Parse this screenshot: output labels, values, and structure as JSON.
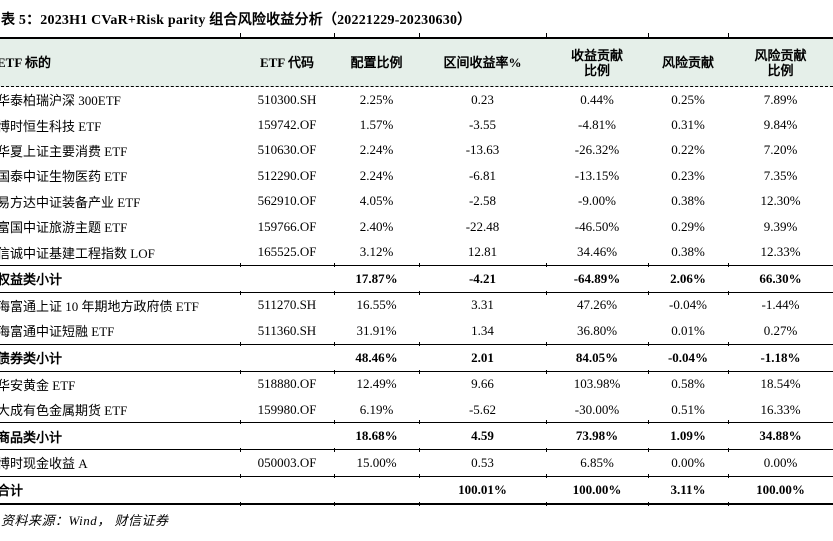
{
  "title": "表 5：2023H1 CVaR+Risk parity 组合风险收益分析（20221229-20230630）",
  "source_note": "资料来源：Wind， 财信证券",
  "colors": {
    "header_bg": "#e5efe9",
    "rule": "#000000"
  },
  "table": {
    "columns": [
      {
        "id": "etf-name",
        "label": "ETF 标的"
      },
      {
        "id": "etf-code",
        "label": "ETF 代码"
      },
      {
        "id": "weight",
        "label": "配置比例"
      },
      {
        "id": "interval-return",
        "label": "区间收益率%"
      },
      {
        "id": "return-contribution-ratio",
        "label": "收益贡献\n比例"
      },
      {
        "id": "risk-contribution",
        "label": "风险贡献"
      },
      {
        "id": "risk-contribution-ratio",
        "label": "风险贡献\n比例"
      }
    ],
    "rows": [
      {
        "type": "item",
        "name": "华泰柏瑞沪深 300ETF",
        "code": "510300.SH",
        "weight": "2.25%",
        "ret": "0.23",
        "ret_contrib": "0.44%",
        "risk": "0.25%",
        "risk_contrib": "7.89%"
      },
      {
        "type": "item",
        "name": "博时恒生科技 ETF",
        "code": "159742.OF",
        "weight": "1.57%",
        "ret": "-3.55",
        "ret_contrib": "-4.81%",
        "risk": "0.31%",
        "risk_contrib": "9.84%"
      },
      {
        "type": "item",
        "name": "华夏上证主要消费 ETF",
        "code": "510630.OF",
        "weight": "2.24%",
        "ret": "-13.63",
        "ret_contrib": "-26.32%",
        "risk": "0.22%",
        "risk_contrib": "7.20%"
      },
      {
        "type": "item",
        "name": "国泰中证生物医药 ETF",
        "code": "512290.OF",
        "weight": "2.24%",
        "ret": "-6.81",
        "ret_contrib": "-13.15%",
        "risk": "0.23%",
        "risk_contrib": "7.35%"
      },
      {
        "type": "item",
        "name": "易方达中证装备产业 ETF",
        "code": "562910.OF",
        "weight": "4.05%",
        "ret": "-2.58",
        "ret_contrib": "-9.00%",
        "risk": "0.38%",
        "risk_contrib": "12.30%"
      },
      {
        "type": "item",
        "name": "富国中证旅游主题 ETF",
        "code": "159766.OF",
        "weight": "2.40%",
        "ret": "-22.48",
        "ret_contrib": "-46.50%",
        "risk": "0.29%",
        "risk_contrib": "9.39%"
      },
      {
        "type": "item",
        "name": "信诚中证基建工程指数 LOF",
        "code": "165525.OF",
        "weight": "3.12%",
        "ret": "12.81",
        "ret_contrib": "34.46%",
        "risk": "0.38%",
        "risk_contrib": "12.33%"
      },
      {
        "type": "subtotal",
        "name": "权益类小计",
        "code": "",
        "weight": "17.87%",
        "ret": "-4.21",
        "ret_contrib": "-64.89%",
        "risk": "2.06%",
        "risk_contrib": "66.30%"
      },
      {
        "type": "item",
        "name": "海富通上证 10 年期地方政府债 ETF",
        "code": "511270.SH",
        "weight": "16.55%",
        "ret": "3.31",
        "ret_contrib": "47.26%",
        "risk": "-0.04%",
        "risk_contrib": "-1.44%"
      },
      {
        "type": "item",
        "name": "海富通中证短融 ETF",
        "code": "511360.SH",
        "weight": "31.91%",
        "ret": "1.34",
        "ret_contrib": "36.80%",
        "risk": "0.01%",
        "risk_contrib": "0.27%"
      },
      {
        "type": "subtotal",
        "name": "债券类小计",
        "code": "",
        "weight": "48.46%",
        "ret": "2.01",
        "ret_contrib": "84.05%",
        "risk": "-0.04%",
        "risk_contrib": "-1.18%"
      },
      {
        "type": "item",
        "name": "华安黄金 ETF",
        "code": "518880.OF",
        "weight": "12.49%",
        "ret": "9.66",
        "ret_contrib": "103.98%",
        "risk": "0.58%",
        "risk_contrib": "18.54%"
      },
      {
        "type": "item",
        "name": "大成有色金属期货 ETF",
        "code": "159980.OF",
        "weight": "6.19%",
        "ret": "-5.62",
        "ret_contrib": "-30.00%",
        "risk": "0.51%",
        "risk_contrib": "16.33%"
      },
      {
        "type": "subtotal",
        "name": "商品类小计",
        "code": "",
        "weight": "18.68%",
        "ret": "4.59",
        "ret_contrib": "73.98%",
        "risk": "1.09%",
        "risk_contrib": "34.88%"
      },
      {
        "type": "item",
        "name": "博时现金收益 A",
        "code": "050003.OF",
        "weight": "15.00%",
        "ret": "0.53",
        "ret_contrib": "6.85%",
        "risk": "0.00%",
        "risk_contrib": "0.00%"
      },
      {
        "type": "total",
        "name": "合计",
        "code": "",
        "weight": "",
        "ret": "100.01%",
        "ret_contrib": "100.00%",
        "risk": "3.11%",
        "risk_contrib": "100.00%"
      }
    ]
  }
}
